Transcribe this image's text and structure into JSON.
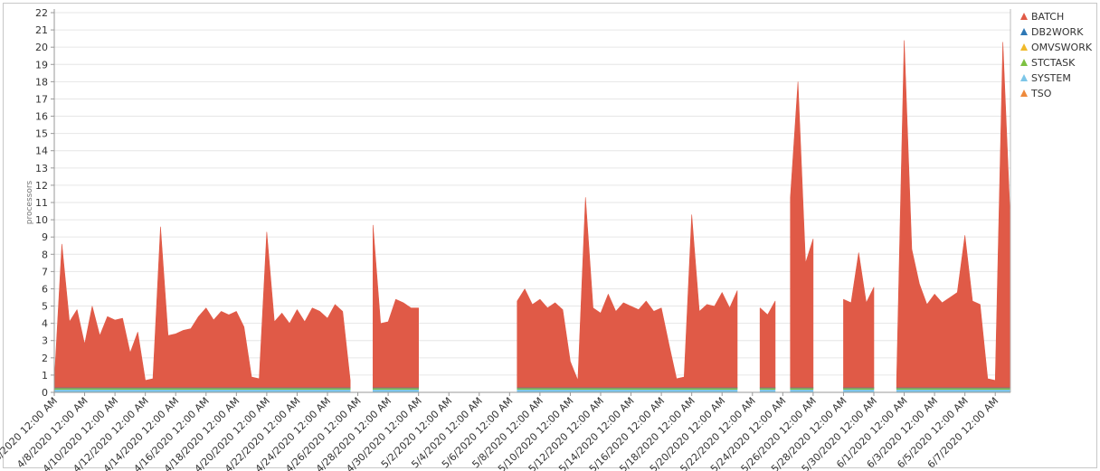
{
  "chart_data": {
    "type": "stacked-area",
    "y_label": "processors",
    "ylim": [
      0,
      22
    ],
    "yticks": [
      0,
      1,
      2,
      3,
      4,
      5,
      6,
      7,
      8,
      9,
      10,
      11,
      12,
      13,
      14,
      15,
      16,
      17,
      18,
      19,
      20,
      21,
      22
    ],
    "grid": true,
    "legend": "top-right",
    "x": [
      "4/6/2020 12:00 AM",
      "4/6/2020 12:00 PM",
      "4/7/2020 12:00 AM",
      "4/7/2020 12:00 PM",
      "4/8/2020 12:00 AM",
      "4/8/2020 12:00 PM",
      "4/9/2020 12:00 AM",
      "4/9/2020 12:00 PM",
      "4/10/2020 12:00 AM",
      "4/10/2020 12:00 PM",
      "4/11/2020 12:00 AM",
      "4/11/2020 12:00 PM",
      "4/12/2020 12:00 AM",
      "4/12/2020 12:00 PM",
      "4/13/2020 12:00 AM",
      "4/13/2020 12:00 PM",
      "4/14/2020 12:00 AM",
      "4/14/2020 12:00 PM",
      "4/15/2020 12:00 AM",
      "4/15/2020 12:00 PM",
      "4/16/2020 12:00 AM",
      "4/16/2020 12:00 PM",
      "4/17/2020 12:00 AM",
      "4/17/2020 12:00 PM",
      "4/18/2020 12:00 AM",
      "4/18/2020 12:00 PM",
      "4/19/2020 12:00 AM",
      "4/19/2020 12:00 PM",
      "4/20/2020 12:00 AM",
      "4/20/2020 12:00 PM",
      "4/21/2020 12:00 AM",
      "4/21/2020 12:00 PM",
      "4/22/2020 12:00 AM",
      "4/22/2020 12:00 PM",
      "4/23/2020 12:00 AM",
      "4/23/2020 12:00 PM",
      "4/24/2020 12:00 AM",
      "4/24/2020 12:00 PM",
      "4/25/2020 12:00 AM",
      "4/25/2020 12:00 PM",
      "4/26/2020 12:00 AM",
      "4/26/2020 12:00 PM",
      "4/27/2020 12:00 AM",
      "4/27/2020 12:00 PM",
      "4/28/2020 12:00 AM",
      "4/28/2020 12:00 PM",
      "4/29/2020 12:00 AM",
      "4/29/2020 12:00 PM",
      "4/30/2020 12:00 AM",
      "4/30/2020 12:00 PM",
      "5/1/2020 12:00 AM",
      "5/1/2020 12:00 PM",
      "5/2/2020 12:00 AM",
      "5/2/2020 12:00 PM",
      "5/3/2020 12:00 AM",
      "5/3/2020 12:00 PM",
      "5/4/2020 12:00 AM",
      "5/4/2020 12:00 PM",
      "5/5/2020 12:00 AM",
      "5/5/2020 12:00 PM",
      "5/6/2020 12:00 AM",
      "5/6/2020 12:00 PM",
      "5/7/2020 12:00 AM",
      "5/7/2020 12:00 PM",
      "5/8/2020 12:00 AM",
      "5/8/2020 12:00 PM",
      "5/9/2020 12:00 AM",
      "5/9/2020 12:00 PM",
      "5/10/2020 12:00 AM",
      "5/10/2020 12:00 PM",
      "5/11/2020 12:00 AM",
      "5/11/2020 12:00 PM",
      "5/12/2020 12:00 AM",
      "5/12/2020 12:00 PM",
      "5/13/2020 12:00 AM",
      "5/13/2020 12:00 PM",
      "5/14/2020 12:00 AM",
      "5/14/2020 12:00 PM",
      "5/15/2020 12:00 AM",
      "5/15/2020 12:00 PM",
      "5/16/2020 12:00 AM",
      "5/16/2020 12:00 PM",
      "5/17/2020 12:00 AM",
      "5/17/2020 12:00 PM",
      "5/18/2020 12:00 AM",
      "5/18/2020 12:00 PM",
      "5/19/2020 12:00 AM",
      "5/19/2020 12:00 PM",
      "5/20/2020 12:00 AM",
      "5/20/2020 12:00 PM",
      "5/21/2020 12:00 AM",
      "5/21/2020 12:00 PM",
      "5/22/2020 12:00 AM",
      "5/22/2020 12:00 PM",
      "5/23/2020 12:00 AM",
      "5/23/2020 12:00 PM",
      "5/24/2020 12:00 AM",
      "5/24/2020 12:00 PM",
      "5/25/2020 12:00 AM",
      "5/25/2020 12:00 PM",
      "5/26/2020 12:00 AM",
      "5/26/2020 12:00 PM",
      "5/27/2020 12:00 AM",
      "5/27/2020 12:00 PM",
      "5/28/2020 12:00 AM",
      "5/28/2020 12:00 PM",
      "5/29/2020 12:00 AM",
      "5/29/2020 12:00 PM",
      "5/30/2020 12:00 AM",
      "5/30/2020 12:00 PM",
      "5/31/2020 12:00 AM",
      "5/31/2020 12:00 PM",
      "6/1/2020 12:00 AM",
      "6/1/2020 12:00 PM",
      "6/2/2020 12:00 AM",
      "6/2/2020 12:00 PM",
      "6/3/2020 12:00 AM",
      "6/3/2020 12:00 PM",
      "6/4/2020 12:00 AM",
      "6/4/2020 12:00 PM",
      "6/5/2020 12:00 AM",
      "6/5/2020 12:00 PM",
      "6/6/2020 12:00 AM",
      "6/6/2020 12:00 PM",
      "6/7/2020 12:00 AM",
      "6/7/2020 12:00 PM",
      "6/8/2020 12:00 AM"
    ],
    "series": [
      {
        "name": "BATCH",
        "color": "#e05a47",
        "values": [
          0.3,
          8.3,
          3.8,
          4.5,
          2.5,
          4.7,
          3.0,
          4.1,
          3.9,
          4.0,
          2.0,
          3.2,
          0.4,
          0.5,
          9.3,
          3.0,
          3.1,
          3.3,
          3.4,
          4.1,
          4.6,
          3.9,
          4.4,
          4.2,
          4.4,
          3.5,
          0.6,
          0.5,
          9.0,
          3.8,
          4.3,
          3.7,
          4.5,
          3.8,
          4.6,
          4.4,
          4.0,
          4.8,
          4.4,
          0.4,
          null,
          null,
          9.4,
          3.7,
          3.8,
          5.1,
          4.9,
          4.6,
          4.6,
          null,
          null,
          null,
          null,
          null,
          null,
          null,
          null,
          null,
          null,
          null,
          null,
          5.0,
          5.7,
          4.8,
          5.1,
          4.6,
          4.9,
          4.5,
          1.5,
          0.4,
          11.0,
          4.6,
          4.3,
          5.4,
          4.4,
          4.9,
          4.7,
          4.5,
          5.0,
          4.4,
          4.6,
          2.5,
          0.5,
          0.6,
          10.0,
          4.4,
          4.8,
          4.7,
          5.5,
          4.6,
          5.6,
          null,
          null,
          4.6,
          4.2,
          5.0,
          null,
          11.0,
          17.7,
          7.2,
          8.6,
          null,
          null,
          null,
          5.1,
          4.9,
          7.8,
          4.9,
          5.8,
          null,
          null,
          0.4,
          20.1,
          8.0,
          6.0,
          4.8,
          5.4,
          4.9,
          5.2,
          5.5,
          8.8,
          5.0,
          4.8,
          0.5,
          0.4,
          20.0,
          9.5
        ]
      },
      {
        "name": "DB2WORK",
        "color": "#2e78b5",
        "values": [
          0.04,
          0.04,
          0.04,
          0.04,
          0.04,
          0.04,
          0.04,
          0.04,
          0.04,
          0.04,
          0.04,
          0.04,
          0.04,
          0.04,
          0.04,
          0.04,
          0.04,
          0.04,
          0.04,
          0.04,
          0.04,
          0.04,
          0.04,
          0.04,
          0.04,
          0.04,
          0.04,
          0.04,
          0.04,
          0.04,
          0.04,
          0.04,
          0.04,
          0.04,
          0.04,
          0.04,
          0.04,
          0.04,
          0.04,
          0.04,
          null,
          null,
          0.04,
          0.04,
          0.04,
          0.04,
          0.04,
          0.04,
          0.04,
          null,
          null,
          null,
          null,
          null,
          null,
          null,
          null,
          null,
          null,
          null,
          null,
          0.04,
          0.04,
          0.04,
          0.04,
          0.04,
          0.04,
          0.04,
          0.04,
          0.04,
          0.04,
          0.04,
          0.04,
          0.04,
          0.04,
          0.04,
          0.04,
          0.04,
          0.04,
          0.04,
          0.04,
          0.04,
          0.04,
          0.04,
          0.04,
          0.04,
          0.04,
          0.04,
          0.04,
          0.04,
          0.04,
          null,
          null,
          0.04,
          0.04,
          0.04,
          null,
          0.04,
          0.04,
          0.04,
          0.04,
          null,
          null,
          null,
          0.04,
          0.04,
          0.04,
          0.04,
          0.04,
          null,
          null,
          0.04,
          0.04,
          0.04,
          0.04,
          0.04,
          0.04,
          0.04,
          0.04,
          0.04,
          0.04,
          0.04,
          0.04,
          0.04,
          0.04,
          0.04,
          0.04
        ]
      },
      {
        "name": "OMVSWORK",
        "color": "#f0b92a",
        "values": [
          0.02,
          0.02,
          0.02,
          0.02,
          0.02,
          0.02,
          0.02,
          0.02,
          0.02,
          0.02,
          0.02,
          0.02,
          0.02,
          0.02,
          0.02,
          0.02,
          0.02,
          0.02,
          0.02,
          0.02,
          0.02,
          0.02,
          0.02,
          0.02,
          0.02,
          0.02,
          0.02,
          0.02,
          0.02,
          0.02,
          0.02,
          0.02,
          0.02,
          0.02,
          0.02,
          0.02,
          0.02,
          0.02,
          0.02,
          0.02,
          null,
          null,
          0.02,
          0.02,
          0.02,
          0.02,
          0.02,
          0.02,
          0.02,
          null,
          null,
          null,
          null,
          null,
          null,
          null,
          null,
          null,
          null,
          null,
          null,
          0.02,
          0.02,
          0.02,
          0.02,
          0.02,
          0.02,
          0.02,
          0.02,
          0.02,
          0.02,
          0.02,
          0.02,
          0.02,
          0.02,
          0.02,
          0.02,
          0.02,
          0.02,
          0.02,
          0.02,
          0.02,
          0.02,
          0.02,
          0.02,
          0.02,
          0.02,
          0.02,
          0.02,
          0.02,
          0.02,
          null,
          null,
          0.02,
          0.02,
          0.02,
          null,
          0.02,
          0.02,
          0.02,
          0.02,
          null,
          null,
          null,
          0.02,
          0.02,
          0.02,
          0.02,
          0.02,
          null,
          null,
          0.02,
          0.02,
          0.02,
          0.02,
          0.02,
          0.02,
          0.02,
          0.02,
          0.02,
          0.02,
          0.02,
          0.02,
          0.02,
          0.02,
          0.02,
          0.02
        ]
      },
      {
        "name": "STCTASK",
        "color": "#7dc142",
        "values": [
          0.06,
          0.06,
          0.06,
          0.06,
          0.06,
          0.06,
          0.06,
          0.06,
          0.06,
          0.06,
          0.06,
          0.06,
          0.06,
          0.06,
          0.06,
          0.06,
          0.06,
          0.06,
          0.06,
          0.06,
          0.06,
          0.06,
          0.06,
          0.06,
          0.06,
          0.06,
          0.06,
          0.06,
          0.06,
          0.06,
          0.06,
          0.06,
          0.06,
          0.06,
          0.06,
          0.06,
          0.06,
          0.06,
          0.06,
          0.06,
          null,
          null,
          0.06,
          0.06,
          0.06,
          0.06,
          0.06,
          0.06,
          0.06,
          null,
          null,
          null,
          null,
          null,
          null,
          null,
          null,
          null,
          null,
          null,
          null,
          0.06,
          0.06,
          0.06,
          0.06,
          0.06,
          0.06,
          0.06,
          0.06,
          0.06,
          0.06,
          0.06,
          0.06,
          0.06,
          0.06,
          0.06,
          0.06,
          0.06,
          0.06,
          0.06,
          0.06,
          0.06,
          0.06,
          0.06,
          0.06,
          0.06,
          0.06,
          0.06,
          0.06,
          0.06,
          0.06,
          null,
          null,
          0.06,
          0.06,
          0.06,
          null,
          0.06,
          0.06,
          0.06,
          0.06,
          null,
          null,
          null,
          0.06,
          0.06,
          0.06,
          0.06,
          0.06,
          null,
          null,
          0.06,
          0.06,
          0.06,
          0.06,
          0.06,
          0.06,
          0.06,
          0.06,
          0.06,
          0.06,
          0.06,
          0.06,
          0.06,
          0.06,
          0.06,
          0.06
        ]
      },
      {
        "name": "SYSTEM",
        "color": "#7dc6e8",
        "values": [
          0.15,
          0.15,
          0.15,
          0.15,
          0.15,
          0.15,
          0.15,
          0.15,
          0.15,
          0.15,
          0.15,
          0.15,
          0.15,
          0.15,
          0.15,
          0.15,
          0.15,
          0.15,
          0.15,
          0.15,
          0.15,
          0.15,
          0.15,
          0.15,
          0.15,
          0.15,
          0.15,
          0.15,
          0.15,
          0.15,
          0.15,
          0.15,
          0.15,
          0.15,
          0.15,
          0.15,
          0.15,
          0.15,
          0.15,
          0.15,
          null,
          null,
          0.15,
          0.15,
          0.15,
          0.15,
          0.15,
          0.15,
          0.15,
          null,
          null,
          null,
          null,
          null,
          null,
          null,
          null,
          null,
          null,
          null,
          null,
          0.15,
          0.15,
          0.15,
          0.15,
          0.15,
          0.15,
          0.15,
          0.15,
          0.15,
          0.15,
          0.15,
          0.15,
          0.15,
          0.15,
          0.15,
          0.15,
          0.15,
          0.15,
          0.15,
          0.15,
          0.15,
          0.15,
          0.15,
          0.15,
          0.15,
          0.15,
          0.15,
          0.15,
          0.15,
          0.15,
          null,
          null,
          0.15,
          0.15,
          0.15,
          null,
          0.15,
          0.15,
          0.15,
          0.15,
          null,
          null,
          null,
          0.15,
          0.15,
          0.15,
          0.15,
          0.15,
          null,
          null,
          0.15,
          0.15,
          0.15,
          0.15,
          0.15,
          0.15,
          0.15,
          0.15,
          0.15,
          0.15,
          0.15,
          0.15,
          0.15,
          0.15,
          0.15,
          0.15
        ]
      },
      {
        "name": "TSO",
        "color": "#ee8a3c",
        "values": [
          0.02,
          0.02,
          0.02,
          0.02,
          0.02,
          0.02,
          0.02,
          0.02,
          0.02,
          0.02,
          0.02,
          0.02,
          0.02,
          0.02,
          0.02,
          0.02,
          0.02,
          0.02,
          0.02,
          0.02,
          0.02,
          0.02,
          0.02,
          0.02,
          0.02,
          0.02,
          0.02,
          0.02,
          0.02,
          0.02,
          0.02,
          0.02,
          0.02,
          0.02,
          0.02,
          0.02,
          0.02,
          0.02,
          0.02,
          0.02,
          null,
          null,
          0.02,
          0.02,
          0.02,
          0.02,
          0.02,
          0.02,
          0.02,
          null,
          null,
          null,
          null,
          null,
          null,
          null,
          null,
          null,
          null,
          null,
          null,
          0.02,
          0.02,
          0.02,
          0.02,
          0.02,
          0.02,
          0.02,
          0.02,
          0.02,
          0.02,
          0.02,
          0.02,
          0.02,
          0.02,
          0.02,
          0.02,
          0.02,
          0.02,
          0.02,
          0.02,
          0.02,
          0.02,
          0.02,
          0.02,
          0.02,
          0.02,
          0.02,
          0.02,
          0.02,
          0.02,
          null,
          null,
          0.02,
          0.02,
          0.02,
          null,
          0.02,
          0.02,
          0.02,
          0.02,
          null,
          null,
          null,
          0.02,
          0.02,
          0.02,
          0.02,
          0.02,
          null,
          null,
          0.02,
          0.02,
          0.02,
          0.02,
          0.02,
          0.02,
          0.02,
          0.02,
          0.02,
          0.02,
          0.02,
          0.02,
          0.02,
          0.02,
          0.02,
          0.02
        ]
      }
    ]
  }
}
